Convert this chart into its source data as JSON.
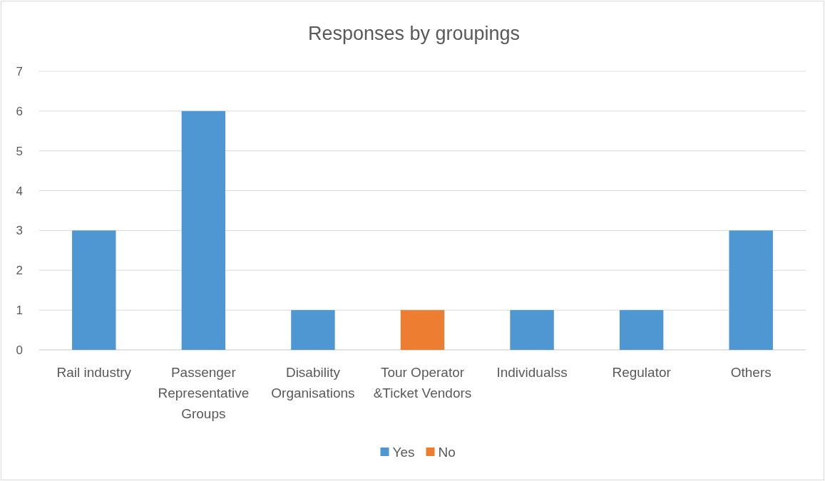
{
  "chart_data": {
    "type": "bar",
    "title": "Responses by groupings",
    "categories": [
      "Rail industry",
      "Passenger Representative Groups",
      "Disability Organisations",
      "Tour Operator &Ticket Vendors",
      "Individualss",
      "Regulator",
      "Others"
    ],
    "series": [
      {
        "name": "Yes",
        "color": "#4f97d3",
        "values": [
          3,
          6,
          1,
          null,
          1,
          1,
          3
        ]
      },
      {
        "name": "No",
        "color": "#ed7d31",
        "values": [
          null,
          null,
          null,
          1,
          null,
          null,
          null
        ]
      }
    ],
    "stacked": true,
    "ylim": [
      0,
      7
    ],
    "yticks": [
      0,
      1,
      2,
      3,
      4,
      5,
      6,
      7
    ],
    "grid": "y",
    "legend": "bottom"
  }
}
